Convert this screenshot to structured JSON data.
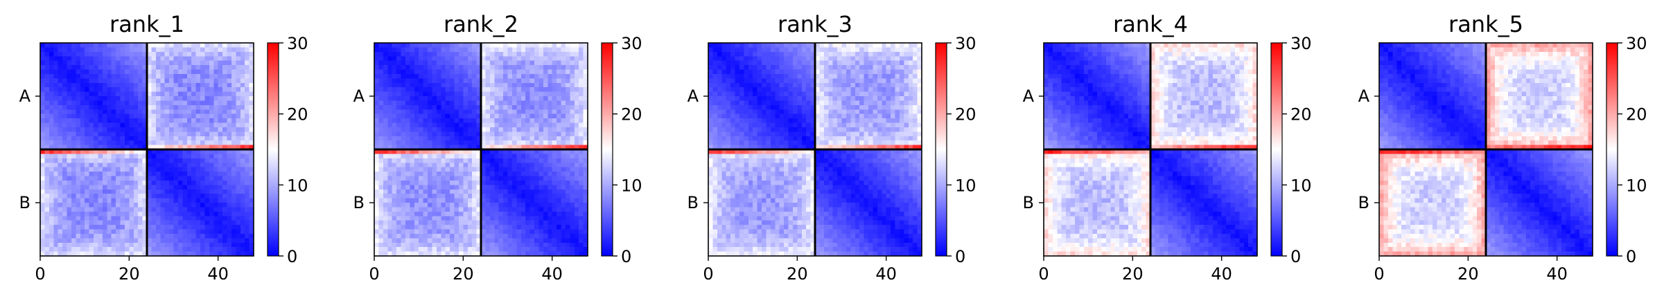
{
  "chart_data": [
    {
      "type": "heatmap",
      "title": "rank_1",
      "x_ticks": [
        "0",
        "20",
        "40"
      ],
      "x_tick_values": [
        0,
        20,
        40
      ],
      "y_tick_labels": [
        "A",
        "B"
      ],
      "colorbar_ticks": [
        "0",
        "10",
        "20",
        "30"
      ],
      "colorbar_values": [
        0,
        10,
        20,
        30
      ],
      "colormap": [
        "#0000ff",
        "#ffffff",
        "#ff0000"
      ],
      "vmin": 0,
      "vmax": 30,
      "matrix_size": 48,
      "block_boundary": 24,
      "intra_block_near": 1,
      "intra_block_far": 9,
      "inter_block_center": 8,
      "inter_block_edge": 13,
      "boundary_edge_peak": 27
    },
    {
      "type": "heatmap",
      "title": "rank_2",
      "x_ticks": [
        "0",
        "20",
        "40"
      ],
      "x_tick_values": [
        0,
        20,
        40
      ],
      "y_tick_labels": [
        "A",
        "B"
      ],
      "colorbar_ticks": [
        "0",
        "10",
        "20",
        "30"
      ],
      "colorbar_values": [
        0,
        10,
        20,
        30
      ],
      "colormap": [
        "#0000ff",
        "#ffffff",
        "#ff0000"
      ],
      "vmin": 0,
      "vmax": 30,
      "matrix_size": 48,
      "block_boundary": 24,
      "intra_block_near": 1,
      "intra_block_far": 9,
      "inter_block_center": 8.5,
      "inter_block_edge": 13.5,
      "boundary_edge_peak": 27
    },
    {
      "type": "heatmap",
      "title": "rank_3",
      "x_ticks": [
        "0",
        "20",
        "40"
      ],
      "x_tick_values": [
        0,
        20,
        40
      ],
      "y_tick_labels": [
        "A",
        "B"
      ],
      "colorbar_ticks": [
        "0",
        "10",
        "20",
        "30"
      ],
      "colorbar_values": [
        0,
        10,
        20,
        30
      ],
      "colormap": [
        "#0000ff",
        "#ffffff",
        "#ff0000"
      ],
      "vmin": 0,
      "vmax": 30,
      "matrix_size": 48,
      "block_boundary": 24,
      "intra_block_near": 1,
      "intra_block_far": 9,
      "inter_block_center": 9,
      "inter_block_edge": 14,
      "boundary_edge_peak": 27
    },
    {
      "type": "heatmap",
      "title": "rank_4",
      "x_ticks": [
        "0",
        "20",
        "40"
      ],
      "x_tick_values": [
        0,
        20,
        40
      ],
      "y_tick_labels": [
        "A",
        "B"
      ],
      "colorbar_ticks": [
        "0",
        "10",
        "20",
        "30"
      ],
      "colorbar_values": [
        0,
        10,
        20,
        30
      ],
      "colormap": [
        "#0000ff",
        "#ffffff",
        "#ff0000"
      ],
      "vmin": 0,
      "vmax": 30,
      "matrix_size": 48,
      "block_boundary": 24,
      "intra_block_near": 1,
      "intra_block_far": 9,
      "inter_block_center": 11,
      "inter_block_edge": 17,
      "boundary_edge_peak": 28
    },
    {
      "type": "heatmap",
      "title": "rank_5",
      "x_ticks": [
        "0",
        "20",
        "40"
      ],
      "x_tick_values": [
        0,
        20,
        40
      ],
      "y_tick_labels": [
        "A",
        "B"
      ],
      "colorbar_ticks": [
        "0",
        "10",
        "20",
        "30"
      ],
      "colorbar_values": [
        0,
        10,
        20,
        30
      ],
      "colormap": [
        "#0000ff",
        "#ffffff",
        "#ff0000"
      ],
      "vmin": 0,
      "vmax": 30,
      "matrix_size": 48,
      "block_boundary": 24,
      "intra_block_near": 1,
      "intra_block_far": 9,
      "inter_block_center": 12,
      "inter_block_edge": 20,
      "boundary_edge_peak": 29
    }
  ]
}
